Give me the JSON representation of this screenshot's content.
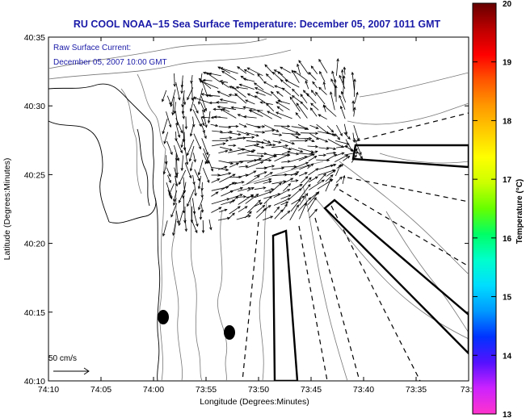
{
  "title": "RU COOL  NOAA−15  Sea Surface Temperature:  December 05, 2007 1011 GMT",
  "overlay": {
    "line1": "Raw Surface Current:",
    "line2": "December 05, 2007 10:00 GMT"
  },
  "axes": {
    "xlabel": "Longitude (Degrees:Minutes)",
    "ylabel": "Latitude (Degrees:Minutes)",
    "xticks": [
      "74:10",
      "74:05",
      "74:00",
      "73:55",
      "73:50",
      "73:45",
      "73:40",
      "73:35",
      "73:3"
    ],
    "yticks": [
      "40:35",
      "40:30",
      "40:25",
      "40:20",
      "40:15",
      "40:10"
    ]
  },
  "scale_arrow": {
    "label": "50 cm/s"
  },
  "colorbar": {
    "label": "Temperature (°C)",
    "ticks": [
      "20",
      "19",
      "18",
      "17",
      "16",
      "15",
      "14",
      "13"
    ],
    "range": [
      13,
      20
    ],
    "colors": [
      "#ff33cc",
      "#cc22ff",
      "#5511ff",
      "#0033ff",
      "#0099ff",
      "#00ddff",
      "#00ffcc",
      "#00ff66",
      "#66ff00",
      "#ccff00",
      "#ffff00",
      "#ffcc00",
      "#ff9900",
      "#ff5500",
      "#ff0000",
      "#bb0000",
      "#660000"
    ]
  },
  "colors": {
    "title": "#1a1aa8",
    "vectors": "#000000",
    "coast": "#000000",
    "bathymetry": "#777777"
  },
  "features": {
    "current_vectors": "dense field of surface current arrows",
    "bathymetry_contours": "gray depth contours",
    "markers": [
      "filled black ellipse",
      "filled black ellipse"
    ],
    "channels": [
      "dashed shipping lanes",
      "solid outlined lanes"
    ]
  }
}
